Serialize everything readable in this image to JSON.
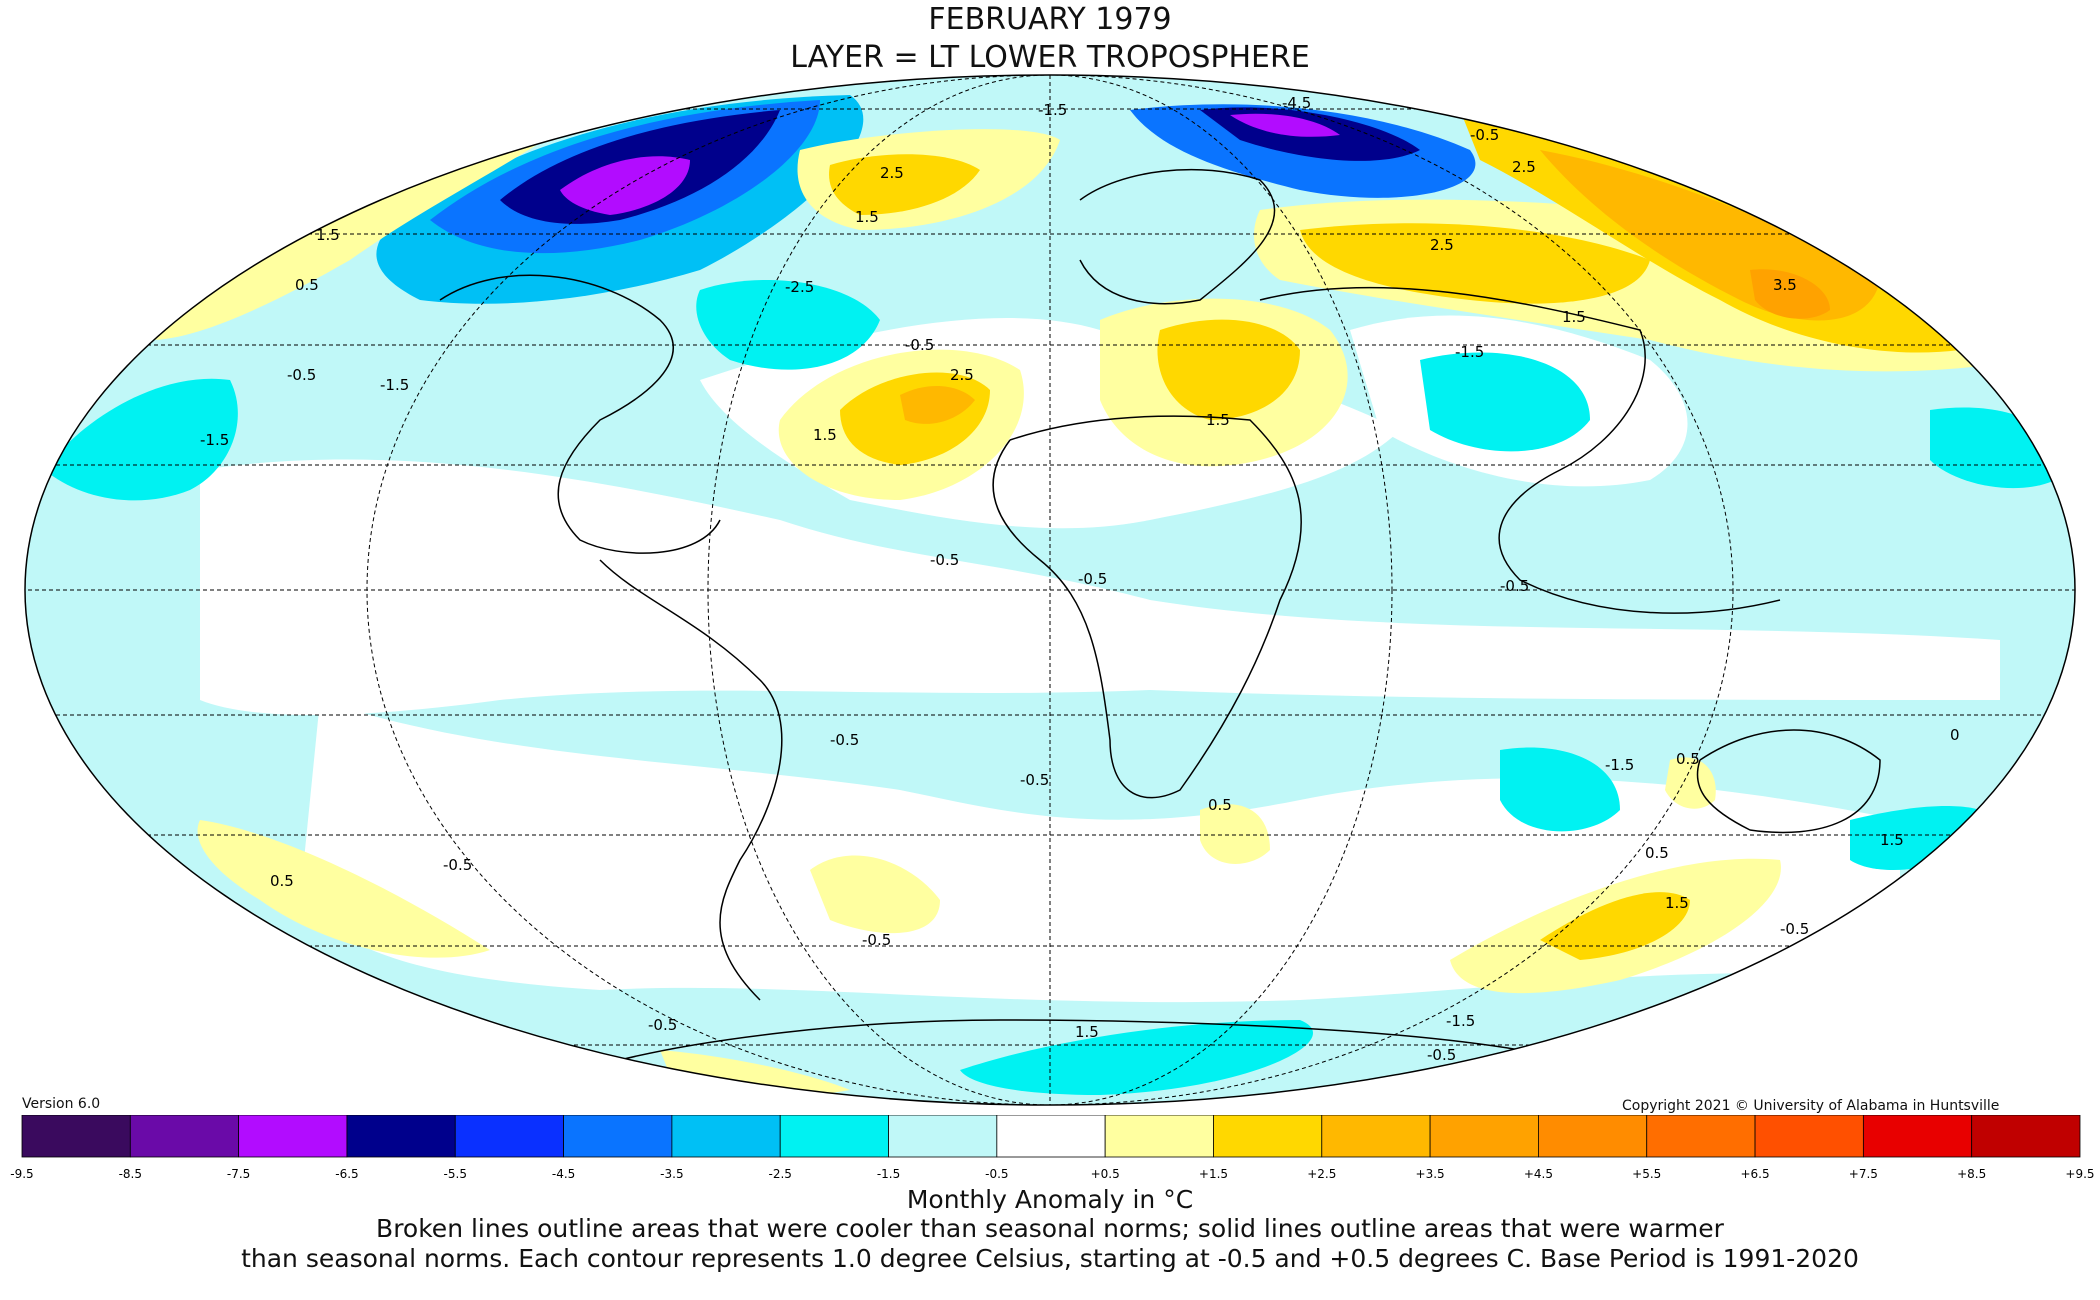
{
  "title": {
    "line1": "FEBRUARY 1979",
    "line2": "LAYER = LT LOWER TROPOSPHERE"
  },
  "version": "Version 6.0",
  "copyright": "Copyright 2021 © University of Alabama in Huntsville",
  "colorbar": {
    "ticks": [
      "-9.5",
      "-8.5",
      "-7.5",
      "-6.5",
      "-5.5",
      "-4.5",
      "-3.5",
      "-2.5",
      "-1.5",
      "-0.5",
      "+0.5",
      "+1.5",
      "+2.5",
      "+3.5",
      "+4.5",
      "+5.5",
      "+6.5",
      "+7.5",
      "+8.5",
      "+9.5"
    ],
    "colors": [
      "#3a0a5e",
      "#6a0aa8",
      "#b20cff",
      "#00008c",
      "#0a30ff",
      "#0a74ff",
      "#00c0f5",
      "#00f2f2",
      "#c0f8f8",
      "#ffffff",
      "#ffffa0",
      "#ffd800",
      "#ffb800",
      "#ffa200",
      "#ff8c00",
      "#ff6e00",
      "#ff5000",
      "#e80000",
      "#c00000"
    ],
    "label": "Monthly Anomaly in °C"
  },
  "footnote": {
    "line1": "Broken lines outline areas that were cooler than seasonal norms; solid lines outline areas that were warmer",
    "line2": "than seasonal norms. Each contour represents 1.0 degree Celsius, starting at -0.5 and +0.5 degrees C. Base Period is 1991-2020"
  },
  "map": {
    "projection": "mollweide",
    "contour_labels": [
      "-1.5",
      "-4.5",
      "-0.5",
      "2.5",
      "1.5",
      "-2.5",
      "0.5",
      "2.5",
      "1.5",
      "2.5",
      "3.5",
      "1.5",
      "-1.5",
      "-0.5",
      "-1.5",
      "-0.5",
      "1.5",
      "-1.5",
      "2.5",
      "1.5",
      "-0.5",
      "-0.5",
      "-0.5",
      "-0.5",
      "0.5",
      "-1.5",
      "0.5",
      "1.5",
      "-0.5",
      "0.5",
      "0.5",
      "-0.5",
      "-0.5",
      "1.5",
      "-0.5",
      "1.5",
      "-1.5",
      "-0.5",
      "-0.5",
      "0"
    ]
  }
}
